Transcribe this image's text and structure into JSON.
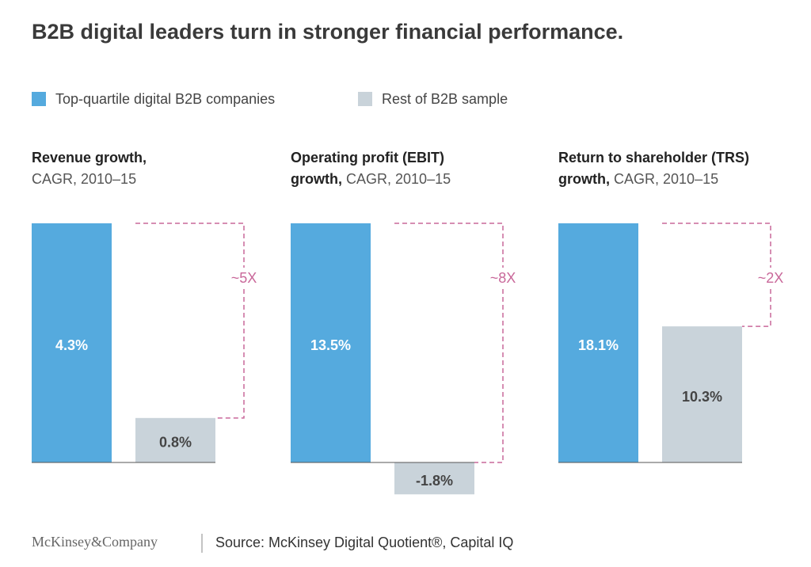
{
  "title": "B2B digital leaders turn in stronger financial performance.",
  "legend": [
    {
      "name": "Top-quartile digital B2B companies",
      "color": "#55aade"
    },
    {
      "name": "Rest of B2B sample",
      "color": "#c9d3da"
    }
  ],
  "chart_data": [
    {
      "type": "bar",
      "title": "Revenue growth,",
      "subtitle": "CAGR, 2010–15",
      "values": [
        4.3,
        0.8
      ],
      "value_labels": [
        "4.3%",
        "0.8%"
      ],
      "ylim": [
        0,
        4.3
      ],
      "annotation": "~5X"
    },
    {
      "type": "bar",
      "title": "Operating profit (EBIT) growth,",
      "subtitle": "CAGR, 2010–15",
      "values": [
        13.5,
        -1.8
      ],
      "value_labels": [
        "13.5%",
        "-1.8%"
      ],
      "ylim": [
        0,
        13.5
      ],
      "annotation": "~8X"
    },
    {
      "type": "bar",
      "title": "Return to shareholder (TRS) growth,",
      "subtitle": "CAGR, 2010–15",
      "values": [
        18.1,
        10.3
      ],
      "value_labels": [
        "18.1%",
        "10.3%"
      ],
      "ylim": [
        0,
        18.1
      ],
      "annotation": "~2X"
    }
  ],
  "footer": {
    "brand": "McKinsey&Company",
    "source": "Source: McKinsey Digital Quotient®, Capital IQ"
  }
}
